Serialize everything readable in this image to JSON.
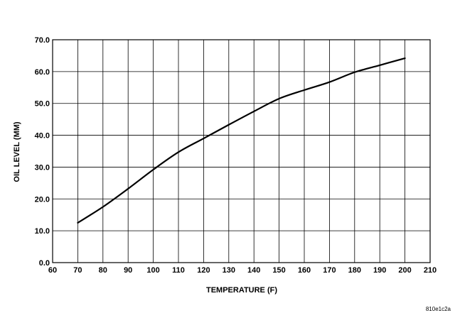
{
  "chart_data": {
    "type": "line",
    "title": "",
    "xlabel": "TEMPERATURE  (F)",
    "ylabel": "OIL LEVEL (MM)",
    "xlim": [
      60,
      210
    ],
    "ylim": [
      0,
      70
    ],
    "x_ticks": [
      60,
      70,
      80,
      90,
      100,
      110,
      120,
      130,
      140,
      150,
      160,
      170,
      180,
      190,
      200,
      210
    ],
    "x_tick_labels": [
      "60",
      "70",
      "80",
      "90",
      "100",
      "110",
      "120",
      "130",
      "140",
      "150",
      "160",
      "170",
      "180",
      "190",
      "200",
      "210"
    ],
    "y_ticks": [
      0,
      10,
      20,
      30,
      40,
      50,
      60,
      70
    ],
    "y_tick_labels": [
      "0.0",
      "10.0",
      "20.0",
      "30.0",
      "40.0",
      "50.0",
      "60.0",
      "70.0"
    ],
    "grid": true,
    "legend": "none",
    "series": [
      {
        "x": [
          70,
          80,
          90,
          100,
          110,
          120,
          130,
          140,
          150,
          160,
          170,
          180,
          190,
          200
        ],
        "y": [
          12.5,
          17.5,
          23.2,
          29.2,
          34.7,
          39.0,
          43.3,
          47.5,
          51.5,
          54.2,
          56.7,
          59.8,
          62.0,
          64.2
        ]
      }
    ],
    "line_color": "#000000",
    "annotation": "810e1c2a"
  }
}
